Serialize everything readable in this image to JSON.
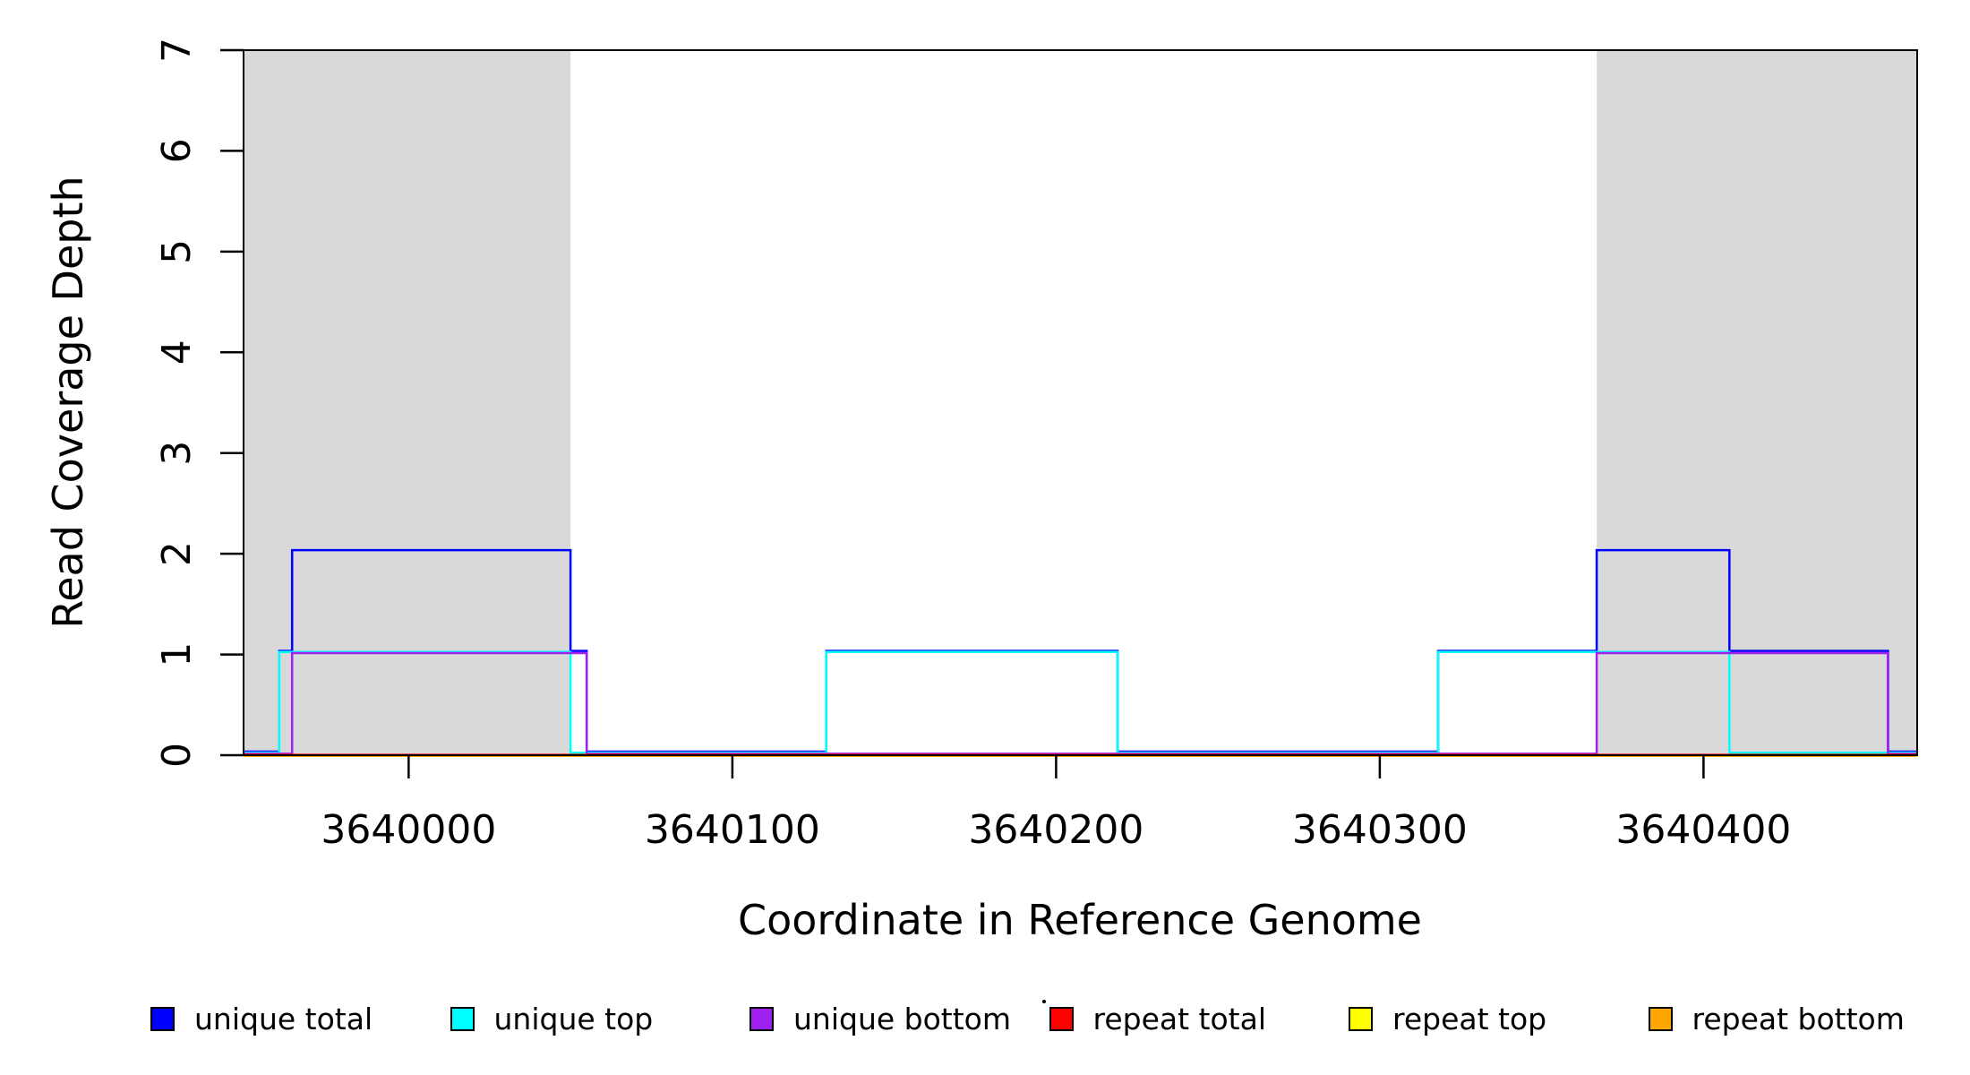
{
  "figure": {
    "y_axis_label": "Read Coverage Depth",
    "x_axis_label": "Coordinate in Reference Genome"
  },
  "chart_data": {
    "type": "line",
    "subtype": "step-coverage",
    "title": "",
    "xlabel": "Coordinate in Reference Genome",
    "ylabel": "Read Coverage Depth",
    "xlim": [
      3639949,
      3640466
    ],
    "ylim": [
      0,
      7
    ],
    "x_ticks": [
      3640000,
      3640100,
      3640200,
      3640300,
      3640400
    ],
    "y_ticks": [
      0,
      1,
      2,
      3,
      4,
      5,
      6,
      7
    ],
    "grid": false,
    "legend_position": "bottom",
    "shaded_regions": {
      "fill": "#D9D9D9",
      "x_ranges": [
        [
          3639949,
          3640050
        ],
        [
          3640367,
          3640466
        ]
      ]
    },
    "series": [
      {
        "name": "unique total",
        "color": "#0000FF",
        "points": [
          [
            3639949,
            0
          ],
          [
            3639960,
            1
          ],
          [
            3639964,
            2
          ],
          [
            3640050,
            1
          ],
          [
            3640055,
            0
          ],
          [
            3640129,
            1
          ],
          [
            3640219,
            0
          ],
          [
            3640318,
            1
          ],
          [
            3640367,
            2
          ],
          [
            3640408,
            1
          ],
          [
            3640457,
            0
          ],
          [
            3640466,
            0
          ]
        ]
      },
      {
        "name": "unique top",
        "color": "#00FFFF",
        "points": [
          [
            3639949,
            0
          ],
          [
            3639960,
            1
          ],
          [
            3640050,
            0
          ],
          [
            3640129,
            1
          ],
          [
            3640219,
            0
          ],
          [
            3640318,
            1
          ],
          [
            3640408,
            0
          ],
          [
            3640466,
            0
          ]
        ]
      },
      {
        "name": "unique bottom",
        "color": "#A020F0",
        "points": [
          [
            3639949,
            0
          ],
          [
            3639964,
            1
          ],
          [
            3640055,
            0
          ],
          [
            3640367,
            1
          ],
          [
            3640457,
            0
          ],
          [
            3640466,
            0
          ]
        ]
      },
      {
        "name": "repeat total",
        "color": "#FF0000",
        "points": [
          [
            3639949,
            0
          ],
          [
            3640466,
            0
          ]
        ]
      },
      {
        "name": "repeat top",
        "color": "#FFFF00",
        "points": [
          [
            3639949,
            0
          ],
          [
            3640466,
            0
          ]
        ]
      },
      {
        "name": "repeat bottom",
        "color": "#FFA500",
        "points": [
          [
            3639949,
            0
          ],
          [
            3640466,
            0
          ]
        ]
      }
    ]
  }
}
